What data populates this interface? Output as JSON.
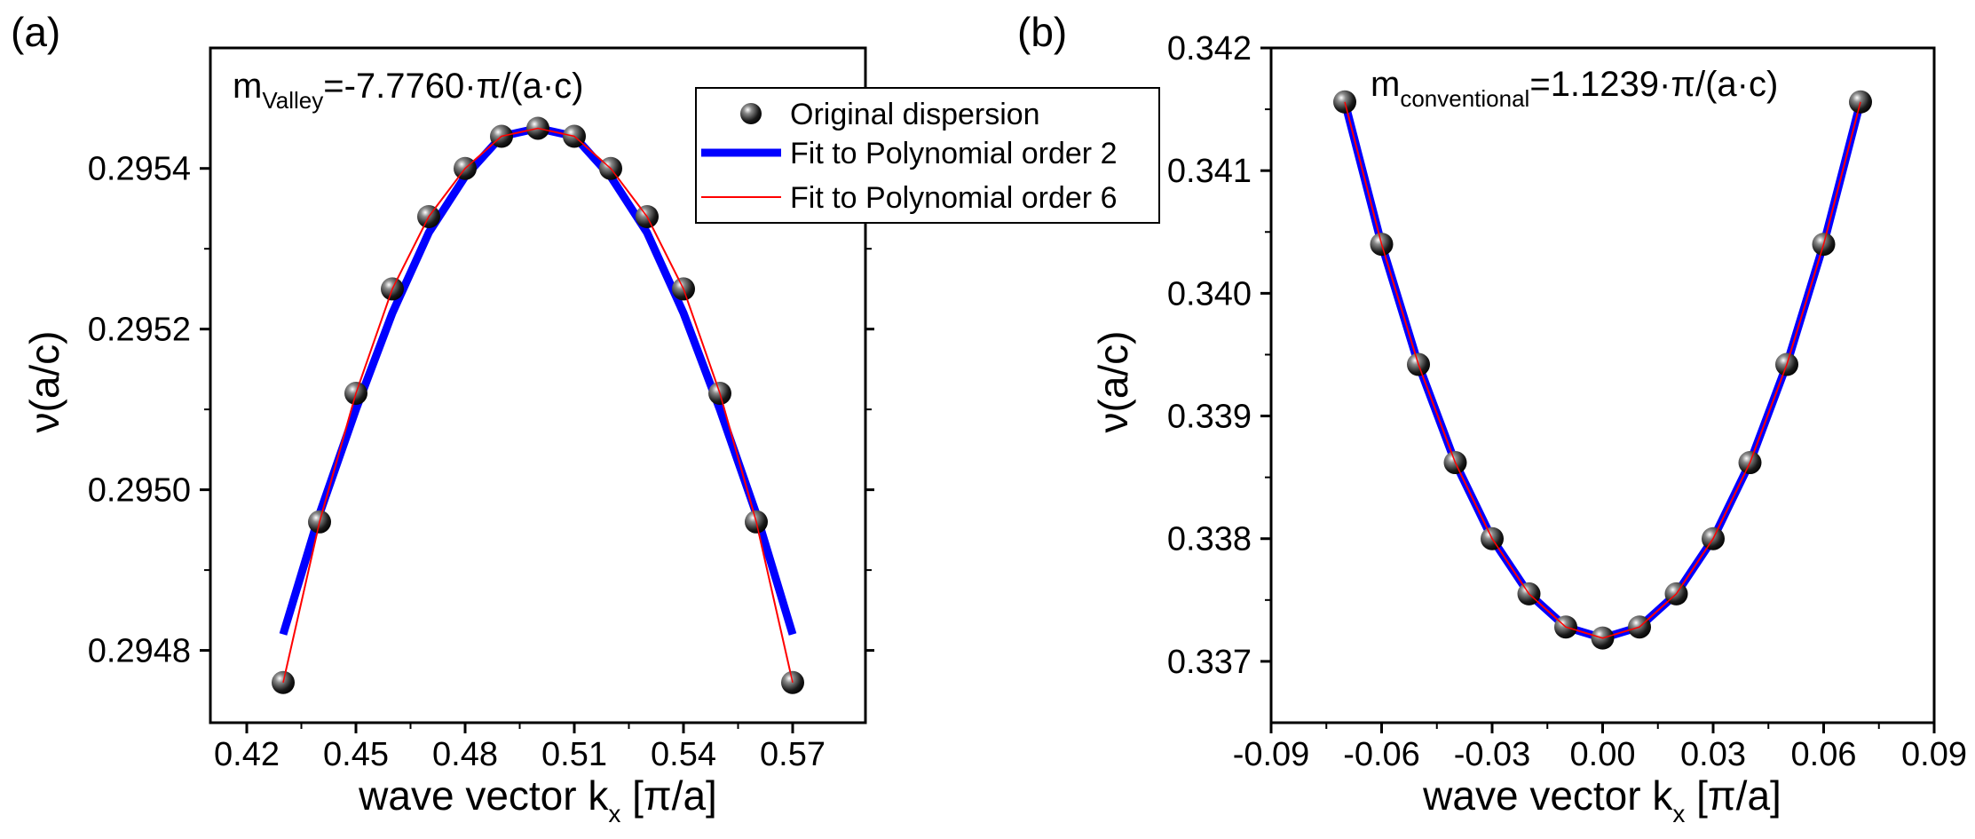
{
  "colors": {
    "poly2": "#0000ff",
    "poly6": "#ff0000",
    "marker": "#111111",
    "frame": "#000000"
  },
  "chart_data": [
    {
      "panel": "(a)",
      "type": "scatter",
      "annotation": {
        "main": "m",
        "sub": "Valley",
        "rest": "=-7.7760·π/(a·c)"
      },
      "xlabel": {
        "main": "wave vector k",
        "sub": "x",
        "rest": " [π/a]"
      },
      "ylabel": "ν(a/c)",
      "xlim": [
        0.41,
        0.59
      ],
      "ylim": [
        0.29471,
        0.29555
      ],
      "xticks": [
        0.42,
        0.45,
        0.48,
        0.51,
        0.54,
        0.57
      ],
      "xtick_labels": [
        "0.42",
        "0.45",
        "0.48",
        "0.51",
        "0.54",
        "0.57"
      ],
      "yticks": [
        0.2948,
        0.295,
        0.2952,
        0.2954
      ],
      "ytick_labels": [
        "0.2948",
        "0.2950",
        "0.2952",
        "0.2954"
      ],
      "legend": {
        "position": "top-right",
        "entries": [
          "Original dispersion",
          "Fit to Polynomial order 2",
          "Fit to Polynomial order 6"
        ]
      },
      "series": [
        {
          "name": "Original dispersion",
          "kind": "markers",
          "x": [
            0.43,
            0.44,
            0.45,
            0.46,
            0.47,
            0.48,
            0.49,
            0.5,
            0.51,
            0.52,
            0.53,
            0.54,
            0.55,
            0.56,
            0.57
          ],
          "y": [
            0.29476,
            0.29496,
            0.29512,
            0.29525,
            0.29534,
            0.2954,
            0.29544,
            0.29545,
            0.29544,
            0.2954,
            0.29534,
            0.29525,
            0.29512,
            0.29496,
            0.29476
          ]
        },
        {
          "name": "Fit to Polynomial order 2",
          "kind": "line",
          "x": [
            0.43,
            0.44,
            0.45,
            0.46,
            0.47,
            0.48,
            0.49,
            0.5,
            0.51,
            0.52,
            0.53,
            0.54,
            0.55,
            0.56,
            0.57
          ],
          "y": [
            0.29482,
            0.29497,
            0.2951,
            0.29522,
            0.29532,
            0.29539,
            0.29544,
            0.29545,
            0.29544,
            0.29539,
            0.29532,
            0.29522,
            0.2951,
            0.29497,
            0.29482
          ]
        },
        {
          "name": "Fit to Polynomial order 6",
          "kind": "line",
          "x": [
            0.43,
            0.44,
            0.45,
            0.46,
            0.47,
            0.48,
            0.49,
            0.5,
            0.51,
            0.52,
            0.53,
            0.54,
            0.55,
            0.56,
            0.57
          ],
          "y": [
            0.29476,
            0.29496,
            0.29512,
            0.29525,
            0.29534,
            0.2954,
            0.29544,
            0.29545,
            0.29544,
            0.2954,
            0.29534,
            0.29525,
            0.29512,
            0.29496,
            0.29476
          ]
        }
      ]
    },
    {
      "panel": "(b)",
      "type": "scatter",
      "annotation": {
        "main": "m",
        "sub": "conventional",
        "rest": "=1.1239·π/(a·c)"
      },
      "xlabel": {
        "main": "wave vector k",
        "sub": "x",
        "rest": " [π/a]"
      },
      "ylabel": "ν(a/c)",
      "xlim": [
        -0.09,
        0.09
      ],
      "ylim": [
        0.3365,
        0.342
      ],
      "xticks": [
        -0.09,
        -0.06,
        -0.03,
        0.0,
        0.03,
        0.06,
        0.09
      ],
      "xtick_labels": [
        "-0.09",
        "-0.06",
        "-0.03",
        "0.00",
        "0.03",
        "0.06",
        "0.09"
      ],
      "yticks": [
        0.337,
        0.338,
        0.339,
        0.34,
        0.341,
        0.342
      ],
      "ytick_labels": [
        "0.337",
        "0.338",
        "0.339",
        "0.340",
        "0.341",
        "0.342"
      ],
      "series": [
        {
          "name": "Original dispersion",
          "kind": "markers",
          "x": [
            -0.07,
            -0.06,
            -0.05,
            -0.04,
            -0.03,
            -0.02,
            -0.01,
            0.0,
            0.01,
            0.02,
            0.03,
            0.04,
            0.05,
            0.06,
            0.07
          ],
          "y": [
            0.34156,
            0.3404,
            0.33942,
            0.33862,
            0.338,
            0.33755,
            0.33728,
            0.33719,
            0.33728,
            0.33755,
            0.338,
            0.33862,
            0.33942,
            0.3404,
            0.34156
          ]
        },
        {
          "name": "Fit to Polynomial order 2",
          "kind": "line",
          "x": [
            -0.07,
            -0.06,
            -0.05,
            -0.04,
            -0.03,
            -0.02,
            -0.01,
            0.0,
            0.01,
            0.02,
            0.03,
            0.04,
            0.05,
            0.06,
            0.07
          ],
          "y": [
            0.34156,
            0.3404,
            0.33942,
            0.33862,
            0.338,
            0.33755,
            0.33728,
            0.33719,
            0.33728,
            0.33755,
            0.338,
            0.33862,
            0.33942,
            0.3404,
            0.34156
          ]
        },
        {
          "name": "Fit to Polynomial order 6",
          "kind": "line",
          "x": [
            -0.07,
            -0.06,
            -0.05,
            -0.04,
            -0.03,
            -0.02,
            -0.01,
            0.0,
            0.01,
            0.02,
            0.03,
            0.04,
            0.05,
            0.06,
            0.07
          ],
          "y": [
            0.34156,
            0.3404,
            0.33942,
            0.33862,
            0.338,
            0.33755,
            0.33728,
            0.33719,
            0.33728,
            0.33755,
            0.338,
            0.33862,
            0.33942,
            0.3404,
            0.34156
          ]
        }
      ]
    }
  ]
}
